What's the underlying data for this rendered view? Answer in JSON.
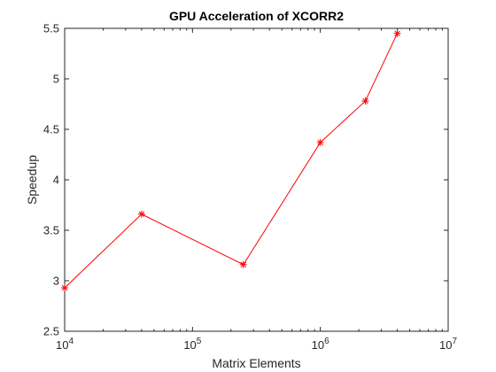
{
  "chart_data": {
    "type": "line",
    "title": "GPU Acceleration of XCORR2",
    "xlabel": "Matrix Elements",
    "ylabel": "Speedup",
    "xscale": "log",
    "xlim": [
      10000,
      10000000
    ],
    "ylim": [
      2.5,
      5.5
    ],
    "x_ticks": [
      {
        "value": 10000,
        "base": "10",
        "exp": "4"
      },
      {
        "value": 100000,
        "base": "10",
        "exp": "5"
      },
      {
        "value": 1000000,
        "base": "10",
        "exp": "6"
      },
      {
        "value": 10000000,
        "base": "10",
        "exp": "7"
      }
    ],
    "y_ticks": [
      "2.5",
      "3",
      "3.5",
      "4",
      "4.5",
      "5",
      "5.5"
    ],
    "grid": false,
    "series": [
      {
        "color": "#ff0000",
        "marker": "asterisk",
        "x": [
          10000,
          40000,
          250000,
          1000000,
          2250000,
          4000000
        ],
        "y": [
          2.93,
          3.66,
          3.16,
          4.37,
          4.78,
          5.45
        ]
      }
    ]
  }
}
